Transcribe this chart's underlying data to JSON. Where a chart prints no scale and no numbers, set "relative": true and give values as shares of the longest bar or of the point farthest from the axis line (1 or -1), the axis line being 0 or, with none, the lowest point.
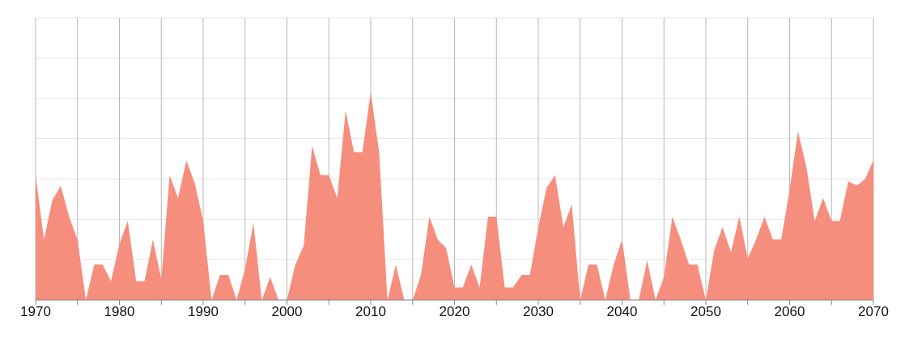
{
  "chart_data": {
    "type": "area",
    "relative": true,
    "color": "#f68e7e",
    "grid": true,
    "x": [
      1970,
      1971,
      1972,
      1973,
      1974,
      1975,
      1976,
      1977,
      1978,
      1979,
      1980,
      1981,
      1982,
      1983,
      1984,
      1985,
      1986,
      1987,
      1988,
      1989,
      1990,
      1991,
      1992,
      1993,
      1994,
      1995,
      1996,
      1997,
      1998,
      1999,
      2000,
      2001,
      2002,
      2003,
      2004,
      2005,
      2006,
      2007,
      2008,
      2009,
      2010,
      2011,
      2012,
      2013,
      2014,
      2015,
      2016,
      2017,
      2018,
      2019,
      2020,
      2021,
      2022,
      2023,
      2024,
      2025,
      2026,
      2027,
      2028,
      2029,
      2030,
      2031,
      2032,
      2033,
      2034,
      2035,
      2036,
      2037,
      2038,
      2039,
      2040,
      2041,
      2042,
      2043,
      2044,
      2045,
      2046,
      2047,
      2048,
      2049,
      2050,
      2051,
      2052,
      2053,
      2054,
      2055,
      2056,
      2057,
      2058,
      2059,
      2060,
      2061,
      2062,
      2063,
      2064,
      2065,
      2066,
      2067,
      2068,
      2069,
      2070
    ],
    "values": [
      0.6,
      0.29,
      0.48,
      0.55,
      0.4,
      0.29,
      0,
      0.17,
      0.17,
      0.09,
      0.27,
      0.38,
      0.09,
      0.09,
      0.29,
      0.1,
      0.6,
      0.49,
      0.67,
      0.56,
      0.38,
      0,
      0.12,
      0.12,
      0,
      0.15,
      0.37,
      0,
      0.11,
      0,
      0,
      0.17,
      0.26,
      0.74,
      0.6,
      0.6,
      0.49,
      0.91,
      0.71,
      0.71,
      1,
      0.71,
      0,
      0.17,
      0,
      0,
      0.12,
      0.4,
      0.29,
      0.25,
      0.06,
      0.06,
      0.17,
      0.06,
      0.4,
      0.4,
      0.06,
      0.06,
      0.12,
      0.12,
      0.35,
      0.54,
      0.6,
      0.35,
      0.46,
      0,
      0.17,
      0.17,
      0,
      0.17,
      0.29,
      0,
      0,
      0.19,
      0,
      0.11,
      0.4,
      0.29,
      0.17,
      0.17,
      0,
      0.24,
      0.35,
      0.23,
      0.4,
      0.2,
      0.29,
      0.4,
      0.29,
      0.29,
      0.53,
      0.81,
      0.64,
      0.38,
      0.49,
      0.38,
      0.38,
      0.57,
      0.55,
      0.58,
      0.67
    ],
    "xlim": [
      1970,
      2070
    ],
    "xticks": [
      1970,
      {
        "value": 1975,
        "label": null
      },
      1980,
      {
        "value": 1985,
        "label": null
      },
      1990,
      {
        "value": 1995,
        "label": null
      },
      2000,
      {
        "value": 2005,
        "label": null
      },
      2010,
      {
        "value": 2015,
        "label": null
      },
      2020,
      {
        "value": 2025,
        "label": null
      },
      2030,
      {
        "value": 2035,
        "label": null
      },
      2040,
      {
        "value": 2045,
        "label": null
      },
      2050,
      {
        "value": 2055,
        "label": null
      },
      2060,
      {
        "value": 2065,
        "label": null
      },
      2070
    ]
  }
}
